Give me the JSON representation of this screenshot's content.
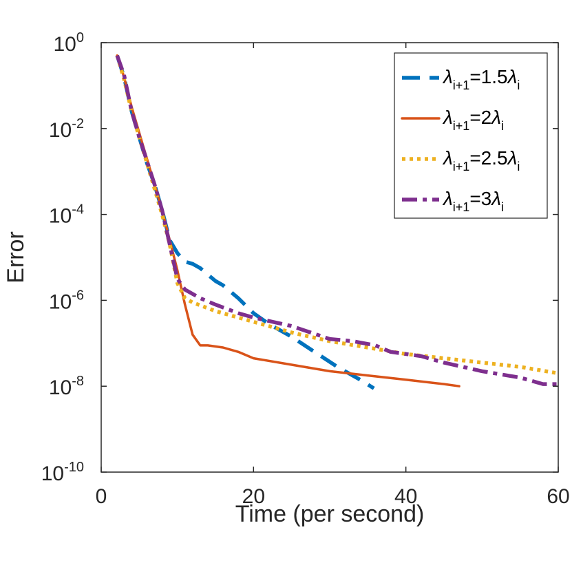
{
  "chart_data": {
    "type": "line",
    "title": "",
    "xlabel": "Time (per second)",
    "ylabel": "Error",
    "xlim": [
      0,
      60
    ],
    "ylim_log10": [
      -10,
      0
    ],
    "yscale": "log",
    "x_ticks": [
      {
        "value": 0,
        "label": "0"
      },
      {
        "value": 20,
        "label": "20"
      },
      {
        "value": 40,
        "label": "40"
      },
      {
        "value": 60,
        "label": "60"
      }
    ],
    "y_ticks": [
      {
        "exp": 0,
        "base": "10",
        "sup": "0"
      },
      {
        "exp": -2,
        "base": "10",
        "sup": "-2"
      },
      {
        "exp": -4,
        "base": "10",
        "sup": "-4"
      },
      {
        "exp": -6,
        "base": "10",
        "sup": "-6"
      },
      {
        "exp": -8,
        "base": "10",
        "sup": "-8"
      },
      {
        "exp": -10,
        "base": "10",
        "sup": "-10"
      }
    ],
    "legend_position": "top-right",
    "series": [
      {
        "name": "λi+1=1.5λi",
        "legend": {
          "lam": "λ",
          "sub": "i+1",
          "mid": "=1.5",
          "lam2": "λ",
          "sub2": "i"
        },
        "color": "#0072BD",
        "style": "dashed",
        "points": [
          [
            2.1,
            -0.3
          ],
          [
            3,
            -0.8
          ],
          [
            4,
            -1.6
          ],
          [
            5,
            -2.2
          ],
          [
            6,
            -2.8
          ],
          [
            7,
            -3.3
          ],
          [
            8,
            -3.9
          ],
          [
            9,
            -4.6
          ],
          [
            10,
            -4.9
          ],
          [
            11,
            -5.1
          ],
          [
            12,
            -5.15
          ],
          [
            13,
            -5.25
          ],
          [
            14,
            -5.4
          ],
          [
            15,
            -5.55
          ],
          [
            16,
            -5.65
          ],
          [
            18,
            -5.95
          ],
          [
            20,
            -6.3
          ],
          [
            22,
            -6.55
          ],
          [
            25,
            -6.85
          ],
          [
            28,
            -7.2
          ],
          [
            31,
            -7.55
          ],
          [
            34,
            -7.85
          ],
          [
            35.8,
            -8.05
          ]
        ]
      },
      {
        "name": "λi+1=2λi",
        "legend": {
          "lam": "λ",
          "sub": "i+1",
          "mid": "=2",
          "lam2": "λ",
          "sub2": "i"
        },
        "color": "#D95319",
        "style": "solid",
        "points": [
          [
            2.1,
            -0.3
          ],
          [
            3,
            -0.8
          ],
          [
            4,
            -1.5
          ],
          [
            5,
            -2.1
          ],
          [
            6,
            -2.7
          ],
          [
            7,
            -3.3
          ],
          [
            8,
            -3.9
          ],
          [
            9,
            -4.6
          ],
          [
            10,
            -5.3
          ],
          [
            11,
            -6.1
          ],
          [
            12,
            -6.8
          ],
          [
            13,
            -7.05
          ],
          [
            14,
            -7.05
          ],
          [
            16,
            -7.1
          ],
          [
            18,
            -7.2
          ],
          [
            20,
            -7.35
          ],
          [
            25,
            -7.5
          ],
          [
            30,
            -7.65
          ],
          [
            35,
            -7.75
          ],
          [
            40,
            -7.85
          ],
          [
            45,
            -7.95
          ],
          [
            47,
            -8.0
          ]
        ]
      },
      {
        "name": "λi+1=2.5λi",
        "legend": {
          "lam": "λ",
          "sub": "i+1",
          "mid": "=2.5",
          "lam2": "λ",
          "sub2": "i"
        },
        "color": "#EDB120",
        "style": "dotted",
        "points": [
          [
            2.1,
            -0.3
          ],
          [
            3,
            -0.85
          ],
          [
            4,
            -1.6
          ],
          [
            5,
            -2.2
          ],
          [
            6,
            -2.8
          ],
          [
            7,
            -3.4
          ],
          [
            8,
            -4.0
          ],
          [
            9,
            -4.7
          ],
          [
            10,
            -5.6
          ],
          [
            11,
            -5.95
          ],
          [
            12,
            -6.05
          ],
          [
            15,
            -6.25
          ],
          [
            20,
            -6.5
          ],
          [
            25,
            -6.75
          ],
          [
            30,
            -6.95
          ],
          [
            35,
            -7.1
          ],
          [
            40,
            -7.25
          ],
          [
            45,
            -7.35
          ],
          [
            50,
            -7.45
          ],
          [
            55,
            -7.55
          ],
          [
            60,
            -7.7
          ]
        ]
      },
      {
        "name": "λi+1=3λi",
        "legend": {
          "lam": "λ",
          "sub": "i+1",
          "mid": "=3",
          "lam2": "λ",
          "sub2": "i"
        },
        "color": "#7E2F8E",
        "style": "dashdot",
        "points": [
          [
            2.1,
            -0.3
          ],
          [
            3,
            -0.75
          ],
          [
            4,
            -1.6
          ],
          [
            5,
            -2.2
          ],
          [
            6,
            -2.75
          ],
          [
            7,
            -3.3
          ],
          [
            8,
            -3.9
          ],
          [
            9,
            -4.7
          ],
          [
            10,
            -5.5
          ],
          [
            11,
            -5.75
          ],
          [
            13,
            -5.95
          ],
          [
            15,
            -6.1
          ],
          [
            18,
            -6.3
          ],
          [
            20,
            -6.4
          ],
          [
            25,
            -6.6
          ],
          [
            30,
            -6.9
          ],
          [
            33,
            -6.95
          ],
          [
            36,
            -7.05
          ],
          [
            38,
            -7.2
          ],
          [
            42,
            -7.3
          ],
          [
            45,
            -7.45
          ],
          [
            50,
            -7.65
          ],
          [
            55,
            -7.8
          ],
          [
            58,
            -7.95
          ],
          [
            60,
            -7.95
          ]
        ]
      }
    ]
  }
}
